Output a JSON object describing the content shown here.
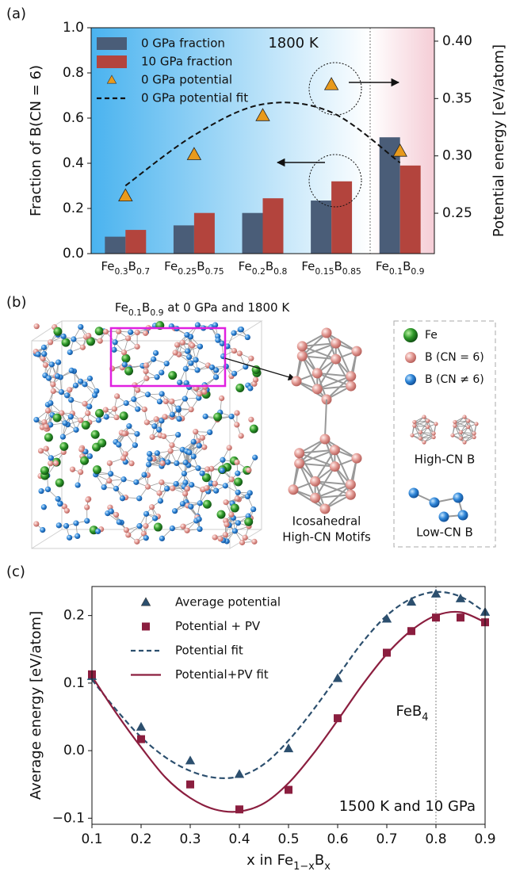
{
  "chart_data": [
    {
      "type": "bar",
      "panel": "(a)",
      "categories": [
        "Fe0.3B0.7",
        "Fe0.25B0.75",
        "Fe0.2B0.8",
        "Fe0.15B0.85",
        "Fe0.1B0.9"
      ],
      "series": [
        {
          "name": "0 GPa fraction",
          "color": "#4a5d78",
          "values": [
            0.075,
            0.125,
            0.18,
            0.235,
            0.515
          ]
        },
        {
          "name": "10 GPa fraction",
          "color": "#b3443d",
          "values": [
            0.105,
            0.18,
            0.245,
            0.32,
            0.39
          ]
        },
        {
          "name": "0 GPa potential",
          "type": "scatter",
          "marker": "triangle",
          "color": "#e89a1c",
          "axis": "y2",
          "values": [
            0.265,
            0.301,
            0.335,
            0.362,
            0.304
          ]
        },
        {
          "name": "0 GPa potential fit",
          "type": "line",
          "dash": true,
          "color": "#111111",
          "axis": "y2",
          "values": [
            0.274,
            0.318,
            0.345,
            0.338,
            0.294
          ]
        }
      ],
      "ylim": [
        0,
        1.0
      ],
      "yticks": [
        {
          "value": 0,
          "label": "0.0"
        },
        0.2,
        0.4,
        0.6,
        0.8,
        {
          "value": 1.0,
          "label": "1.0"
        }
      ],
      "y2lim": [
        0.2148,
        0.4117
      ],
      "y2ticks": [
        0.25,
        {
          "value": 0.3,
          "label": "0.30"
        },
        0.35,
        {
          "value": 0.4,
          "label": "0.40"
        }
      ],
      "ylabel": "Fraction of B(CN = 6)",
      "y2label": "Potential energy [eV/atom]",
      "annotations": [
        "1800 K"
      ]
    },
    {
      "type": "line",
      "panel": "(c)",
      "series": [
        {
          "name": "Average potential",
          "type": "scatter",
          "marker": "triangle",
          "color": "#2c4f6e",
          "x": [
            0.1,
            0.2,
            0.3,
            0.4,
            0.5,
            0.6,
            0.7,
            0.75,
            0.8,
            0.85,
            0.9
          ],
          "values": [
            0.11,
            0.035,
            -0.015,
            -0.035,
            0.003,
            0.107,
            0.195,
            0.22,
            0.232,
            0.225,
            0.205
          ]
        },
        {
          "name": "Potential + PV",
          "type": "scatter",
          "marker": "square",
          "color": "#8b1e3f",
          "x": [
            0.1,
            0.2,
            0.3,
            0.4,
            0.5,
            0.6,
            0.7,
            0.75,
            0.8,
            0.85,
            0.9
          ],
          "values": [
            0.113,
            0.017,
            -0.05,
            -0.087,
            -0.058,
            0.048,
            0.145,
            0.177,
            0.197,
            0.197,
            0.19
          ]
        },
        {
          "name": "Potential fit",
          "type": "line",
          "dash": true,
          "color": "#2c4f6e",
          "x": [
            0.1,
            0.15,
            0.2,
            0.25,
            0.3,
            0.35,
            0.4,
            0.45,
            0.5,
            0.55,
            0.6,
            0.65,
            0.7,
            0.75,
            0.8,
            0.85,
            0.9
          ],
          "values": [
            0.105,
            0.06,
            0.02,
            -0.01,
            -0.03,
            -0.04,
            -0.038,
            -0.02,
            0.015,
            0.06,
            0.11,
            0.16,
            0.2,
            0.225,
            0.235,
            0.228,
            0.205
          ]
        },
        {
          "name": "Potential+PV fit",
          "type": "line",
          "color": "#8b1e3f",
          "x": [
            0.1,
            0.15,
            0.2,
            0.25,
            0.3,
            0.35,
            0.4,
            0.45,
            0.5,
            0.55,
            0.6,
            0.65,
            0.7,
            0.75,
            0.8,
            0.85,
            0.9
          ],
          "values": [
            0.11,
            0.055,
            0.005,
            -0.04,
            -0.07,
            -0.087,
            -0.09,
            -0.078,
            -0.048,
            -0.005,
            0.045,
            0.097,
            0.143,
            0.178,
            0.2,
            0.205,
            0.19
          ]
        }
      ],
      "xlim": [
        0.1,
        0.9
      ],
      "xticks": [
        0.1,
        0.2,
        0.3,
        0.4,
        0.5,
        0.6,
        0.7,
        0.8,
        0.9
      ],
      "ylim": [
        -0.109,
        0.243
      ],
      "yticks": [
        {
          "value": -0.1,
          "label": "−0.1"
        },
        {
          "value": 0,
          "label": "0.0"
        },
        0.1,
        0.2
      ],
      "reference_x": 0.8,
      "xlabel": "x in Fe1−xBx",
      "ylabel": "Average energy [eV/atom]",
      "annotations": [
        "FeB4",
        "1500 K and 10 GPa"
      ]
    }
  ],
  "structure_panel": {
    "label": "(b)",
    "title": "Fe0.1B0.9 at 0 GPa and 1800 K",
    "motif_label": [
      "Icosahedral",
      "High-CN Motifs"
    ],
    "legend": [
      "Fe",
      "B (CN = 6)",
      "B (CN ≠ 6)"
    ],
    "high_cn_label": "High-CN B",
    "low_cn_label": "Low-CN B"
  }
}
